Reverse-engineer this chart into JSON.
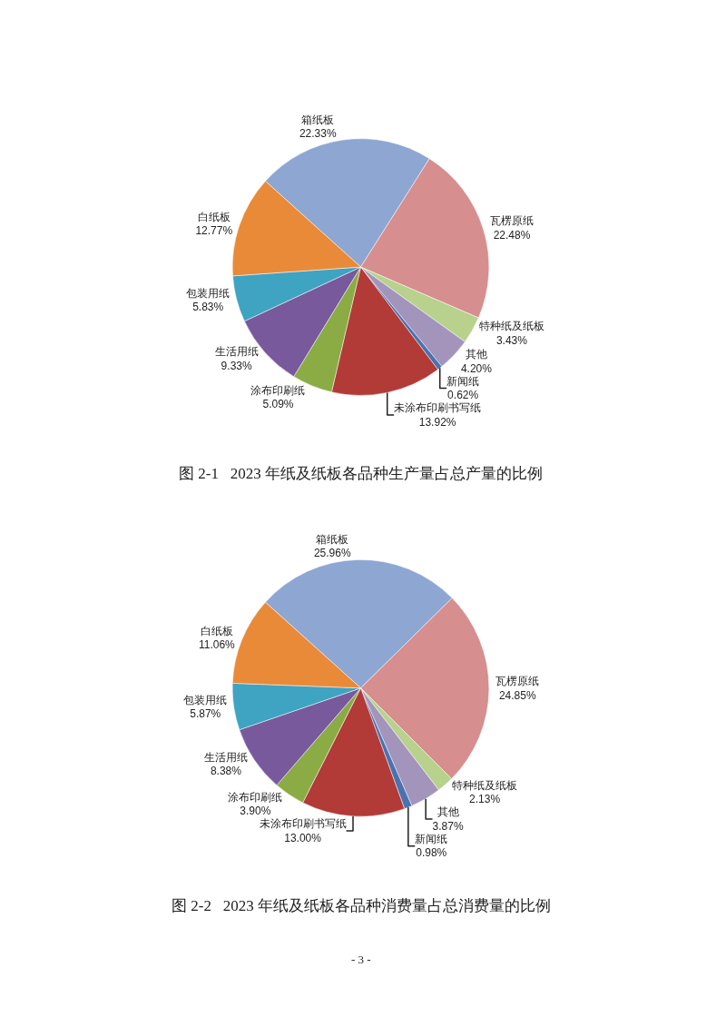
{
  "chart_data": [
    {
      "type": "pie",
      "title": "图 2-1   2023 年纸及纸板各品种生产量占总产量的比例",
      "categories": [
        "箱纸板",
        "瓦楞原纸",
        "特种纸及纸板",
        "其他",
        "新闻纸",
        "未涂布印刷书写纸",
        "涂布印刷纸",
        "生活用纸",
        "包装用纸",
        "白纸板"
      ],
      "values": [
        22.33,
        22.48,
        3.43,
        4.2,
        0.62,
        13.92,
        5.09,
        9.33,
        5.83,
        12.77
      ],
      "value_labels": [
        "22.33%",
        "22.48%",
        "3.43%",
        "4.20%",
        "0.62%",
        "13.92%",
        "5.09%",
        "9.33%",
        "5.83%",
        "12.77%"
      ],
      "colors": [
        "#8ea6d2",
        "#d68e8e",
        "#b8d28e",
        "#a394bc",
        "#4a72b0",
        "#b23a37",
        "#8bab45",
        "#77599c",
        "#3fa3c2",
        "#e98a38"
      ]
    },
    {
      "type": "pie",
      "title": "图 2-2   2023 年纸及纸板各品种消费量占总消费量的比例",
      "categories": [
        "箱纸板",
        "瓦楞原纸",
        "特种纸及纸板",
        "其他",
        "新闻纸",
        "未涂布印刷书写纸",
        "涂布印刷纸",
        "生活用纸",
        "包装用纸",
        "白纸板"
      ],
      "values": [
        25.96,
        24.85,
        2.13,
        3.87,
        0.98,
        13.0,
        3.9,
        8.38,
        5.87,
        11.06
      ],
      "value_labels": [
        "25.96%",
        "24.85%",
        "2.13%",
        "3.87%",
        "0.98%",
        "13.00%",
        "3.90%",
        "8.38%",
        "5.87%",
        "11.06%"
      ],
      "colors": [
        "#8ea6d2",
        "#d68e8e",
        "#b8d28e",
        "#a394bc",
        "#4a72b0",
        "#b23a37",
        "#8bab45",
        "#77599c",
        "#3fa3c2",
        "#e98a38"
      ],
      "annotations": [
        "- 3 -"
      ]
    }
  ]
}
